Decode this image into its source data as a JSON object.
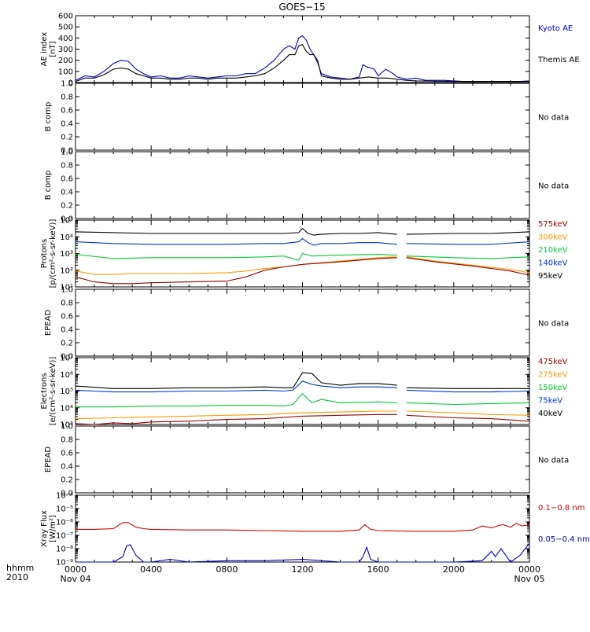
{
  "title": "GOES−15",
  "footer": {
    "hhmm": "hhmm",
    "year": "2010"
  },
  "x_axis": {
    "range_hours": [
      0,
      24
    ],
    "ticks": [
      {
        "h": 0,
        "label": "0000",
        "sub": "Nov 04"
      },
      {
        "h": 4,
        "label": "0400",
        "sub": ""
      },
      {
        "h": 8,
        "label": "0800",
        "sub": ""
      },
      {
        "h": 12,
        "label": "1200",
        "sub": ""
      },
      {
        "h": 16,
        "label": "1600",
        "sub": ""
      },
      {
        "h": 20,
        "label": "2000",
        "sub": ""
      },
      {
        "h": 24,
        "label": "0000",
        "sub": "Nov 05"
      }
    ]
  },
  "chart_data": [
    {
      "type": "line",
      "id": "ae",
      "ylabel": [
        "AE index",
        "[nT]"
      ],
      "yscale": "linear",
      "ylim": [
        0,
        600
      ],
      "ticks": [
        "0",
        "100",
        "200",
        "300",
        "400",
        "500",
        "600"
      ],
      "legend": [
        {
          "name": "Kyoto AE",
          "color": "#0000cc"
        },
        {
          "name": "Themis AE",
          "color": "#000000"
        }
      ],
      "series": [
        {
          "name": "Kyoto AE",
          "color": "#0000cc",
          "x": [
            0,
            0.5,
            1,
            1.5,
            2,
            2.4,
            2.8,
            3.2,
            3.6,
            4,
            4.5,
            5,
            5.5,
            6,
            6.5,
            7,
            7.5,
            8,
            8.5,
            9,
            9.5,
            10,
            10.5,
            11,
            11.3,
            11.6,
            11.8,
            12,
            12.2,
            12.4,
            12.6,
            12.8,
            13,
            13.5,
            14,
            14.5,
            15,
            15.2,
            15.4,
            15.6,
            15.8,
            16,
            16.4,
            16.8,
            17,
            17.5,
            18,
            18.5,
            19,
            19.5,
            20,
            20.5,
            21,
            21.5,
            22,
            22.5,
            23,
            23.5,
            24
          ],
          "y": [
            20,
            60,
            50,
            100,
            170,
            200,
            190,
            120,
            80,
            50,
            60,
            40,
            40,
            60,
            50,
            40,
            50,
            60,
            60,
            80,
            80,
            130,
            200,
            300,
            330,
            300,
            400,
            420,
            380,
            300,
            250,
            180,
            80,
            50,
            40,
            30,
            50,
            160,
            140,
            130,
            120,
            60,
            120,
            80,
            50,
            30,
            40,
            20,
            20,
            20,
            15,
            10,
            10,
            10,
            10,
            10,
            10,
            10,
            15
          ]
        },
        {
          "name": "Themis AE",
          "color": "#000000",
          "x": [
            0,
            0.5,
            1,
            1.5,
            2,
            2.4,
            2.8,
            3.2,
            3.6,
            4,
            4.5,
            5,
            5.5,
            6,
            6.5,
            7,
            7.5,
            8,
            8.5,
            9,
            9.5,
            10,
            10.5,
            11,
            11.3,
            11.6,
            11.8,
            12,
            12.2,
            12.4,
            12.6,
            12.8,
            13,
            13.5,
            14,
            14.5,
            15,
            15.5,
            16,
            16.5,
            17,
            17.5,
            18,
            20,
            22,
            24
          ],
          "y": [
            10,
            40,
            40,
            70,
            120,
            130,
            120,
            80,
            60,
            40,
            40,
            30,
            30,
            40,
            40,
            30,
            40,
            40,
            40,
            50,
            60,
            80,
            130,
            200,
            250,
            250,
            330,
            340,
            280,
            250,
            250,
            200,
            60,
            40,
            30,
            30,
            40,
            50,
            40,
            40,
            30,
            20,
            15,
            10,
            10,
            10
          ]
        }
      ]
    },
    {
      "type": "line",
      "id": "b1",
      "ylabel": [
        "B comp"
      ],
      "yscale": "linear",
      "ylim": [
        0,
        1
      ],
      "ticks": [
        "0.0",
        "0.2",
        "0.4",
        "0.6",
        "0.8",
        "1.0"
      ],
      "note": "No data",
      "series": []
    },
    {
      "type": "line",
      "id": "b2",
      "ylabel": [
        "B comp"
      ],
      "yscale": "linear",
      "ylim": [
        0,
        1
      ],
      "ticks": [
        "0.0",
        "0.2",
        "0.4",
        "0.6",
        "0.8",
        "1.0"
      ],
      "note": "No data",
      "series": []
    },
    {
      "type": "line",
      "id": "protons",
      "ylabel": [
        "Protons",
        "[p/(cm²-s-sr-keV)]"
      ],
      "yscale": "log",
      "ylim": [
        1,
        5
      ],
      "ticks": [
        "10¹",
        "10²",
        "10³",
        "10⁴",
        "10⁵"
      ],
      "legend": [
        {
          "name": "575keV",
          "color": "#990000"
        },
        {
          "name": "300keV",
          "color": "#ff9900"
        },
        {
          "name": "210keV",
          "color": "#00cc33"
        },
        {
          "name": "140keV",
          "color": "#0033cc"
        },
        {
          "name": "95keV",
          "color": "#000000"
        }
      ],
      "series": [
        {
          "name": "95keV",
          "color": "#000000",
          "x": [
            0,
            2,
            4,
            6,
            8,
            10,
            11,
            11.8,
            12,
            12.3,
            12.6,
            13,
            14,
            15,
            16,
            17,
            17.2,
            17.5,
            20,
            22,
            24
          ],
          "y": [
            4.3,
            4.25,
            4.2,
            4.2,
            4.2,
            4.2,
            4.2,
            4.25,
            4.5,
            4.2,
            4.1,
            4.15,
            4.2,
            4.2,
            4.25,
            4.15,
            null,
            4.15,
            4.2,
            4.2,
            4.3
          ]
        },
        {
          "name": "140keV",
          "color": "#0033cc",
          "x": [
            0,
            2,
            4,
            6,
            8,
            10,
            11,
            11.8,
            12,
            12.3,
            12.6,
            13,
            14,
            15,
            16,
            17,
            17.2,
            17.5,
            20,
            22,
            24
          ],
          "y": [
            3.7,
            3.6,
            3.55,
            3.55,
            3.55,
            3.6,
            3.6,
            3.7,
            3.9,
            3.65,
            3.5,
            3.6,
            3.6,
            3.65,
            3.65,
            3.55,
            null,
            3.6,
            3.55,
            3.55,
            3.7
          ]
        },
        {
          "name": "210keV",
          "color": "#00cc33",
          "x": [
            0,
            2,
            4,
            6,
            8,
            10,
            11,
            11.8,
            12,
            12.5,
            14,
            16,
            17,
            17.2,
            17.5,
            20,
            22,
            24
          ],
          "y": [
            2.95,
            2.7,
            2.75,
            2.75,
            2.75,
            2.8,
            2.85,
            2.6,
            3.0,
            2.85,
            2.9,
            2.95,
            2.9,
            null,
            2.85,
            2.75,
            2.7,
            2.8
          ]
        },
        {
          "name": "300keV",
          "color": "#ff9900",
          "x": [
            0,
            1,
            2,
            3,
            4,
            6,
            8,
            9,
            10,
            11,
            12,
            14,
            16,
            17,
            17.2,
            17.5,
            19,
            21,
            23,
            24
          ],
          "y": [
            1.95,
            1.75,
            1.75,
            1.8,
            1.8,
            1.8,
            1.85,
            1.95,
            2.1,
            2.2,
            2.35,
            2.55,
            2.75,
            2.8,
            null,
            2.8,
            2.55,
            2.3,
            2.05,
            1.85
          ]
        },
        {
          "name": "575keV",
          "color": "#990000",
          "x": [
            0,
            1,
            2,
            3,
            4,
            6,
            8,
            9,
            10,
            11,
            12,
            14,
            16,
            17,
            17.2,
            17.5,
            19,
            21,
            23,
            24
          ],
          "y": [
            1.6,
            1.3,
            1.2,
            1.2,
            1.25,
            1.3,
            1.35,
            1.6,
            2.0,
            2.2,
            2.35,
            2.5,
            2.7,
            2.75,
            null,
            2.75,
            2.5,
            2.25,
            1.95,
            1.7
          ]
        }
      ]
    },
    {
      "type": "line",
      "id": "epead1",
      "ylabel": [
        "EPEAD"
      ],
      "yscale": "linear",
      "ylim": [
        0,
        1
      ],
      "ticks": [
        "0.0",
        "0.2",
        "0.4",
        "0.6",
        "0.8",
        "1.0"
      ],
      "note": "No data",
      "series": []
    },
    {
      "type": "line",
      "id": "electrons",
      "ylabel": [
        "Electrons",
        "[e/(cm²-s-sr-keV)]"
      ],
      "yscale": "log",
      "ylim": [
        3,
        7
      ],
      "ticks": [
        "10³",
        "10⁴",
        "10⁵",
        "10⁶",
        "10⁷"
      ],
      "legend": [
        {
          "name": "475keV",
          "color": "#990000"
        },
        {
          "name": "275keV",
          "color": "#ff9900"
        },
        {
          "name": "150keV",
          "color": "#00cc33"
        },
        {
          "name": "75keV",
          "color": "#0033cc"
        },
        {
          "name": "40keV",
          "color": "#000000"
        }
      ],
      "series": [
        {
          "name": "40keV",
          "color": "#000000",
          "x": [
            0,
            2,
            4,
            6,
            8,
            10,
            11,
            11.5,
            12,
            12.5,
            13,
            14,
            15,
            16,
            17,
            17.2,
            17.5,
            20,
            22,
            24
          ],
          "y": [
            5.3,
            5.15,
            5.15,
            5.2,
            5.2,
            5.25,
            5.2,
            5.2,
            6.1,
            6.05,
            5.5,
            5.35,
            5.45,
            5.45,
            5.35,
            null,
            5.2,
            5.15,
            5.15,
            5.15
          ]
        },
        {
          "name": "75keV",
          "color": "#0033cc",
          "x": [
            0,
            2,
            4,
            6,
            8,
            10,
            11,
            11.5,
            12,
            12.5,
            13,
            14,
            15,
            16,
            17,
            17.2,
            17.5,
            20,
            22,
            24
          ],
          "y": [
            5.05,
            4.95,
            4.95,
            5.0,
            5.0,
            5.05,
            5.0,
            5.05,
            5.6,
            5.4,
            5.3,
            5.2,
            5.25,
            5.25,
            5.2,
            null,
            5.05,
            4.95,
            4.95,
            5.0
          ]
        },
        {
          "name": "150keV",
          "color": "#00cc33",
          "x": [
            0,
            2,
            4,
            6,
            8,
            10,
            11,
            11.5,
            12,
            12.5,
            13,
            14,
            16,
            17,
            17.2,
            17.5,
            20,
            22,
            24
          ],
          "y": [
            4.05,
            4.05,
            4.1,
            4.1,
            4.15,
            4.15,
            4.1,
            4.2,
            4.85,
            4.3,
            4.5,
            4.3,
            4.35,
            4.3,
            null,
            4.3,
            4.2,
            4.25,
            4.3
          ]
        },
        {
          "name": "275keV",
          "color": "#ff9900",
          "x": [
            0,
            2,
            4,
            6,
            8,
            10,
            12,
            14,
            16,
            17,
            17.2,
            17.5,
            20,
            22,
            24
          ],
          "y": [
            3.35,
            3.4,
            3.45,
            3.5,
            3.55,
            3.6,
            3.7,
            3.75,
            3.8,
            3.8,
            null,
            3.8,
            3.7,
            3.6,
            3.55
          ]
        },
        {
          "name": "475keV",
          "color": "#990000",
          "x": [
            0,
            1,
            2,
            3,
            4,
            6,
            8,
            10,
            12,
            14,
            16,
            17,
            17.2,
            17.5,
            20,
            22,
            24
          ],
          "y": [
            3.05,
            3.0,
            3.1,
            3.05,
            3.15,
            3.2,
            3.3,
            3.35,
            3.5,
            3.55,
            3.6,
            3.6,
            null,
            3.55,
            3.4,
            3.35,
            3.2
          ]
        }
      ]
    },
    {
      "type": "line",
      "id": "epead2",
      "ylabel": [
        "EPEAD"
      ],
      "yscale": "linear",
      "ylim": [
        0,
        1
      ],
      "ticks": [
        "0.0",
        "0.2",
        "0.4",
        "0.6",
        "0.8",
        "1.0"
      ],
      "note": "No data",
      "series": []
    },
    {
      "type": "line",
      "id": "xray",
      "ylabel": [
        "Xray Flux",
        "[W/m²]"
      ],
      "yscale": "log",
      "ylim": [
        -9,
        -4
      ],
      "ticks": [
        "10⁻⁹",
        "10⁻⁸",
        "10⁻⁷",
        "10⁻⁶",
        "10⁻⁵",
        "10⁻⁴"
      ],
      "legend": [
        {
          "name": "0.1−0.8 nm",
          "color": "#cc0000"
        },
        {
          "name": "0.05−0.4 nm",
          "color": "#0000cc"
        }
      ],
      "series": [
        {
          "name": "0.1−0.8 nm",
          "color": "#cc0000",
          "x": [
            0,
            1,
            2,
            2.5,
            2.8,
            3.2,
            3.6,
            4,
            6,
            8,
            10,
            12,
            14,
            15,
            15.3,
            15.6,
            16,
            18,
            20,
            21,
            21.5,
            22,
            22.3,
            22.6,
            23,
            23.3,
            23.6,
            24
          ],
          "y": [
            -6.55,
            -6.55,
            -6.5,
            -6.05,
            -6.05,
            -6.4,
            -6.5,
            -6.55,
            -6.6,
            -6.6,
            -6.65,
            -6.7,
            -6.7,
            -6.6,
            -6.2,
            -6.55,
            -6.65,
            -6.7,
            -6.7,
            -6.6,
            -6.3,
            -6.45,
            -6.3,
            -6.2,
            -6.4,
            -6.1,
            -6.3,
            -6.2
          ]
        },
        {
          "name": "0.05−0.4 nm",
          "color": "#0000cc",
          "x": [
            0,
            2,
            2.5,
            2.7,
            2.9,
            3.2,
            3.6,
            4,
            5,
            6,
            8,
            10,
            12,
            14,
            15,
            15.2,
            15.4,
            15.6,
            16,
            20,
            21.5,
            22,
            22.2,
            22.5,
            22.8,
            23,
            23.5,
            24
          ],
          "y": [
            -9,
            -9,
            -8.6,
            -7.8,
            -7.7,
            -8.5,
            -9,
            -9,
            -8.8,
            -9,
            -8.9,
            -8.9,
            -8.8,
            -9,
            -9,
            -8.6,
            -7.9,
            -8.8,
            -9,
            -9,
            -8.9,
            -8.2,
            -8.6,
            -8,
            -8.6,
            -9,
            -8.5,
            -7.6
          ]
        }
      ]
    }
  ]
}
